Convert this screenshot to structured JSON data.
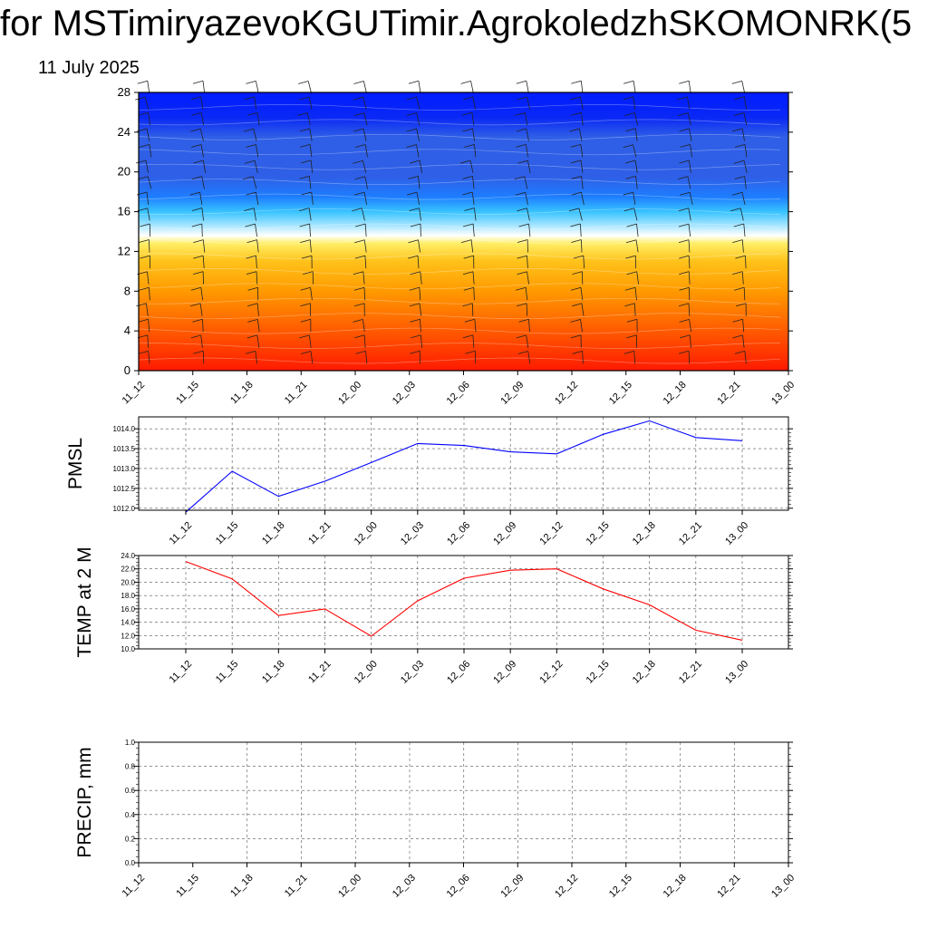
{
  "header": {
    "title": "for MSTimiryazevoKGUTimir.AgrokoledzhSKOMONRK(5",
    "date": "11 July 2025"
  },
  "chart_data": [
    {
      "type": "heatmap",
      "title": "",
      "xlabel": "",
      "ylabel": "",
      "x_tick_labels": [
        "11_12",
        "11_15",
        "11_18",
        "11_21",
        "12_00",
        "12_03",
        "12_06",
        "12_09",
        "12_12",
        "12_15",
        "12_18",
        "12_21",
        "13_00"
      ],
      "y_ticks": [
        0,
        4,
        8,
        12,
        16,
        20,
        24,
        28
      ],
      "ylim": [
        0,
        28
      ],
      "overlay": "wind barbs at each time and level",
      "color_levels": [
        {
          "y": 0,
          "color": "#ff1a00"
        },
        {
          "y": 4,
          "color": "#ff5a00"
        },
        {
          "y": 8,
          "color": "#ff9a00"
        },
        {
          "y": 11,
          "color": "#ffc21a"
        },
        {
          "y": 12.8,
          "color": "#ffee66"
        },
        {
          "y": 13.6,
          "color": "#ffffff"
        },
        {
          "y": 14.6,
          "color": "#a8e6ff"
        },
        {
          "y": 16,
          "color": "#38c3ff"
        },
        {
          "y": 17.5,
          "color": "#1e7dff"
        },
        {
          "y": 19.5,
          "color": "#2f5fe6"
        },
        {
          "y": 23.5,
          "color": "#2f5fe6"
        },
        {
          "y": 25.5,
          "color": "#0a28f5"
        },
        {
          "y": 28,
          "color": "#001cff"
        }
      ]
    },
    {
      "type": "line",
      "title": "",
      "xlabel": "",
      "ylabel": "PMSL",
      "x": [
        "11_12",
        "11_15",
        "11_18",
        "11_21",
        "12_00",
        "12_03",
        "12_06",
        "12_09",
        "12_12",
        "12_15",
        "12_18",
        "12_21",
        "13_00"
      ],
      "y_tick_labels": [
        "1012.0",
        "1012.5",
        "1013.0",
        "1013.5",
        "1014.0"
      ],
      "ylim": [
        1011.95,
        1014.3
      ],
      "grid": true,
      "series": [
        {
          "color": "#0000ff",
          "values": [
            1011.9,
            1012.93,
            1012.3,
            1012.68,
            1013.15,
            1013.63,
            1013.58,
            1013.42,
            1013.37,
            1013.86,
            1014.2,
            1013.78,
            1013.7
          ]
        }
      ]
    },
    {
      "type": "line",
      "title": "",
      "xlabel": "",
      "ylabel": "TEMP at 2 M",
      "x": [
        "11_12",
        "11_15",
        "11_18",
        "11_21",
        "12_00",
        "12_03",
        "12_06",
        "12_09",
        "12_12",
        "12_15",
        "12_18",
        "12_21",
        "13_00"
      ],
      "y_tick_labels": [
        "10.0",
        "12.0",
        "14.0",
        "16.0",
        "18.0",
        "20.0",
        "22.0",
        "24.0"
      ],
      "ylim": [
        10,
        24
      ],
      "grid": true,
      "series": [
        {
          "color": "#ff0000",
          "values": [
            23.1,
            20.5,
            15.0,
            16.0,
            11.9,
            17.2,
            20.6,
            21.8,
            22.0,
            19.0,
            16.6,
            12.8,
            11.3
          ]
        }
      ]
    },
    {
      "type": "line",
      "title": "",
      "xlabel": "",
      "ylabel": "PRECIP, mm",
      "x": [
        "11_12",
        "11_15",
        "11_18",
        "11_21",
        "12_00",
        "12_03",
        "12_06",
        "12_09",
        "12_12",
        "12_15",
        "12_18",
        "12_21",
        "13_00"
      ],
      "y_tick_labels": [
        "0.0",
        "0.2",
        "0.4",
        "0.6",
        "0.8",
        "1.0"
      ],
      "ylim": [
        0,
        1
      ],
      "grid": true,
      "series": [
        {
          "color": "#006400",
          "values": [
            0,
            0,
            0,
            0,
            0,
            0,
            0,
            0,
            0,
            0,
            0,
            0,
            0
          ]
        }
      ]
    }
  ]
}
